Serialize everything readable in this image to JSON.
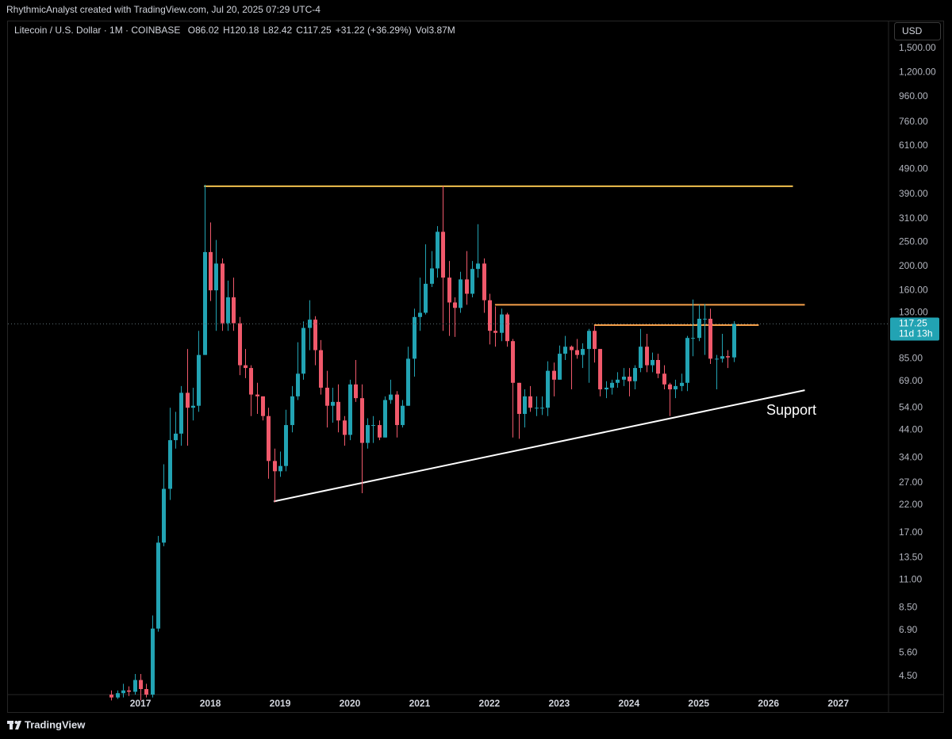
{
  "header": {
    "text": "RhythmicAnalyst created with TradingView.com, Jul 20, 2025 07:29 UTC-4"
  },
  "footer": {
    "brand": "TradingView"
  },
  "chart_data": {
    "type": "candlestick",
    "symbol": "Litecoin / U.S. Dollar · 1M · COINBASE",
    "legend": [
      {
        "key": "O",
        "value": "86.02"
      },
      {
        "key": "H",
        "value": "120.18"
      },
      {
        "key": "L",
        "value": "82.42"
      },
      {
        "key": "C",
        "value": "117.25"
      },
      {
        "value": "+31.22 (+36.29%)"
      },
      {
        "key": "Vol",
        "value": "3.87M"
      }
    ],
    "currency": "USD",
    "up_color": "#22a3b3",
    "down_color": "#f0596b",
    "log_scale": true,
    "grid": false,
    "xlim": [
      2015.1,
      2027.72
    ],
    "xticks": [
      2017,
      2018,
      2019,
      2020,
      2021,
      2022,
      2023,
      2024,
      2025,
      2026,
      2027
    ],
    "ylim": [
      3.8,
      1940
    ],
    "yticks": [
      {
        "value": 1500,
        "label": "1,500.00"
      },
      {
        "value": 1200,
        "label": "1,200.00"
      },
      {
        "value": 960,
        "label": "960.00"
      },
      {
        "value": 760,
        "label": "760.00"
      },
      {
        "value": 610,
        "label": "610.00"
      },
      {
        "value": 490,
        "label": "490.00"
      },
      {
        "value": 390,
        "label": "390.00"
      },
      {
        "value": 310,
        "label": "310.00"
      },
      {
        "value": 250,
        "label": "250.00"
      },
      {
        "value": 200,
        "label": "200.00"
      },
      {
        "value": 160,
        "label": "160.00"
      },
      {
        "value": 130,
        "label": "130.00"
      },
      {
        "value": 85,
        "label": "85.00"
      },
      {
        "value": 69,
        "label": "69.00"
      },
      {
        "value": 54,
        "label": "54.00"
      },
      {
        "value": 44,
        "label": "44.00"
      },
      {
        "value": 34,
        "label": "34.00"
      },
      {
        "value": 27,
        "label": "27.00"
      },
      {
        "value": 22,
        "label": "22.00"
      },
      {
        "value": 17,
        "label": "17.00"
      },
      {
        "value": 13.5,
        "label": "13.50"
      },
      {
        "value": 11,
        "label": "11.00"
      },
      {
        "value": 8.5,
        "label": "8.50"
      },
      {
        "value": 6.9,
        "label": "6.90"
      },
      {
        "value": 5.6,
        "label": "5.60"
      },
      {
        "value": 4.5,
        "label": "4.50"
      }
    ],
    "x": [
      2016.583,
      2016.667,
      2016.75,
      2016.833,
      2016.917,
      2017,
      2017.083,
      2017.167,
      2017.25,
      2017.333,
      2017.417,
      2017.5,
      2017.583,
      2017.667,
      2017.75,
      2017.833,
      2017.917,
      2018,
      2018.083,
      2018.167,
      2018.25,
      2018.333,
      2018.417,
      2018.5,
      2018.583,
      2018.667,
      2018.75,
      2018.833,
      2018.917,
      2019,
      2019.083,
      2019.167,
      2019.25,
      2019.333,
      2019.417,
      2019.5,
      2019.583,
      2019.667,
      2019.75,
      2019.833,
      2019.917,
      2020,
      2020.083,
      2020.167,
      2020.25,
      2020.333,
      2020.417,
      2020.5,
      2020.583,
      2020.667,
      2020.75,
      2020.833,
      2020.917,
      2021,
      2021.083,
      2021.167,
      2021.25,
      2021.333,
      2021.417,
      2021.5,
      2021.583,
      2021.667,
      2021.75,
      2021.833,
      2021.917,
      2022,
      2022.083,
      2022.167,
      2022.25,
      2022.333,
      2022.417,
      2022.5,
      2022.583,
      2022.667,
      2022.75,
      2022.833,
      2022.917,
      2023,
      2023.083,
      2023.167,
      2023.25,
      2023.333,
      2023.417,
      2023.5,
      2023.583,
      2023.667,
      2023.75,
      2023.833,
      2023.917,
      2024,
      2024.083,
      2024.167,
      2024.25,
      2024.333,
      2024.417,
      2024.5,
      2024.583,
      2024.667,
      2024.75,
      2024.833,
      2024.917,
      2025,
      2025.083,
      2025.167,
      2025.25,
      2025.333,
      2025.417,
      2025.5
    ],
    "open": [
      3.8,
      3.7,
      3.85,
      3.95,
      3.9,
      4.35,
      4.0,
      3.8,
      7.0,
      15.5,
      25.5,
      40,
      42.5,
      62,
      54,
      55,
      88,
      228,
      160,
      205,
      118,
      150,
      118,
      80,
      78,
      61,
      60,
      50,
      33,
      30,
      31.5,
      46,
      60,
      74,
      113,
      122,
      92,
      65,
      55,
      57,
      48,
      42,
      67,
      59,
      39,
      46,
      46,
      41,
      58,
      61,
      46,
      55,
      85,
      125,
      130,
      170,
      196,
      275,
      180,
      143,
      136,
      177,
      155,
      195,
      205,
      146,
      110,
      108,
      128,
      100,
      68,
      51,
      60,
      54,
      54,
      54,
      76,
      70,
      89,
      95,
      92,
      88,
      93,
      110,
      93,
      64,
      65,
      68,
      70,
      72,
      69,
      78,
      95,
      80,
      84,
      74,
      67,
      64,
      66,
      68,
      103,
      103,
      123,
      123,
      85,
      85,
      87,
      86.02
    ],
    "high": [
      3.95,
      3.95,
      4.2,
      4.1,
      4.6,
      4.6,
      4.2,
      7.9,
      16.5,
      32,
      54,
      52,
      66,
      93,
      65,
      110,
      425,
      300,
      255,
      215,
      175,
      180,
      125,
      93,
      80,
      68,
      60,
      54,
      37,
      36,
      53,
      66,
      99,
      120,
      146,
      126,
      101,
      76,
      65,
      67,
      50,
      70,
      84,
      67,
      49,
      50,
      48,
      60,
      70,
      63,
      58,
      95,
      135,
      180,
      245,
      230,
      290,
      420,
      210,
      150,
      190,
      230,
      210,
      295,
      215,
      155,
      138,
      135,
      130,
      102,
      68,
      64,
      66,
      60,
      60,
      83,
      82,
      96,
      105,
      96,
      102,
      98,
      112,
      115,
      93,
      69,
      70,
      75,
      78,
      78,
      80,
      112,
      107,
      90,
      89,
      80,
      68,
      70,
      74,
      105,
      147,
      140,
      141,
      135,
      88,
      107,
      92,
      120.18
    ],
    "low": [
      3.6,
      3.65,
      3.7,
      3.75,
      3.8,
      3.6,
      3.7,
      3.7,
      6.8,
      15,
      23,
      37,
      38,
      38,
      48,
      52,
      88,
      145,
      110,
      110,
      110,
      110,
      73,
      71,
      50,
      51,
      48,
      28,
      22.5,
      28.5,
      30,
      43,
      58,
      70,
      92,
      80,
      61,
      45,
      47,
      43,
      38,
      40,
      57,
      24.5,
      37,
      39,
      40,
      41,
      56,
      41,
      45,
      55,
      72,
      110,
      128,
      165,
      180,
      110,
      105,
      104,
      130,
      140,
      150,
      180,
      130,
      97,
      95,
      100,
      95,
      41,
      40.5,
      45,
      52,
      50,
      50.5,
      50,
      60,
      70,
      84,
      64,
      85,
      78,
      68,
      82,
      60,
      59,
      61,
      65,
      66,
      60,
      64,
      75,
      75,
      75,
      71,
      64,
      50,
      59,
      63,
      63,
      87,
      100,
      88,
      81,
      64,
      82,
      78,
      82.42
    ],
    "close": [
      3.7,
      3.85,
      3.95,
      3.9,
      4.35,
      4.0,
      3.8,
      7.0,
      15.5,
      25.5,
      40,
      42.5,
      62,
      54,
      55,
      88,
      228,
      160,
      205,
      118,
      150,
      118,
      80,
      78,
      61,
      60,
      50,
      33,
      30,
      31.5,
      46,
      60,
      74,
      113,
      122,
      92,
      65,
      55,
      57,
      48,
      42,
      67,
      59,
      39,
      46,
      46,
      41,
      58,
      61,
      46,
      55,
      85,
      125,
      130,
      170,
      196,
      275,
      180,
      143,
      136,
      177,
      155,
      195,
      205,
      146,
      110,
      108,
      128,
      100,
      68,
      51,
      60,
      54,
      54,
      54,
      76,
      70,
      89,
      95,
      92,
      88,
      93,
      110,
      93,
      64,
      65,
      68,
      70,
      72,
      69,
      78,
      95,
      80,
      84,
      74,
      67,
      64,
      66,
      68,
      103,
      103,
      123,
      123,
      85,
      85,
      87,
      86.02,
      117.25
    ],
    "drawings": [
      {
        "color": "#f2c14e",
        "x": [
          2017.91,
          2026.35
        ],
        "y": [
          419,
          419
        ]
      },
      {
        "color": "#f5a04a",
        "x": [
          2022.08,
          2026.52
        ],
        "y": [
          140,
          140
        ]
      },
      {
        "color": "#f5a04a",
        "x": [
          2023.5,
          2025.86
        ],
        "y": [
          116,
          116
        ]
      },
      {
        "color": "#ffffff",
        "x": [
          2018.91,
          2026.52
        ],
        "y": [
          22.7,
          63.5
        ],
        "label": "Support"
      }
    ],
    "last_price": {
      "value": 117.25,
      "countdown": "11d 13h",
      "color": "#22a3b3"
    }
  }
}
